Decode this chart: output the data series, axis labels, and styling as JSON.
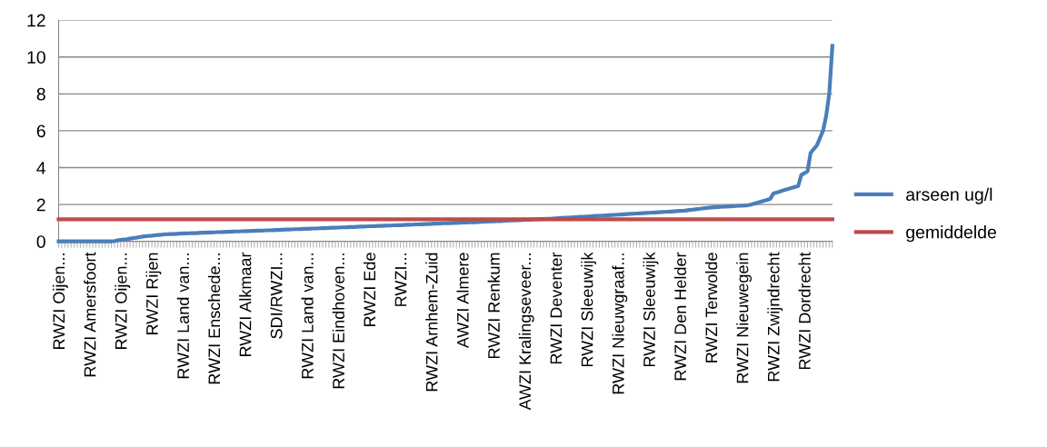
{
  "chart_data": {
    "type": "line",
    "categories": [
      "RWZI Oijen...",
      null,
      null,
      null,
      null,
      null,
      null,
      null,
      null,
      null,
      "RWZI Amersfoort",
      null,
      null,
      null,
      null,
      null,
      null,
      null,
      null,
      null,
      "RWZI Oijen...",
      null,
      null,
      null,
      null,
      null,
      null,
      null,
      null,
      null,
      "RWZI Rijen",
      null,
      null,
      null,
      null,
      null,
      null,
      null,
      null,
      null,
      "RWZI Land van...",
      null,
      null,
      null,
      null,
      null,
      null,
      null,
      null,
      null,
      "RWZI Enschede...",
      null,
      null,
      null,
      null,
      null,
      null,
      null,
      null,
      null,
      "RWZI Alkmaar",
      null,
      null,
      null,
      null,
      null,
      null,
      null,
      null,
      null,
      "SDI/RWZI...",
      null,
      null,
      null,
      null,
      null,
      null,
      null,
      null,
      null,
      "RWZI Land van...",
      null,
      null,
      null,
      null,
      null,
      null,
      null,
      null,
      null,
      "RWZI Eindhoven...",
      null,
      null,
      null,
      null,
      null,
      null,
      null,
      null,
      null,
      "RWZI Ede",
      null,
      null,
      null,
      null,
      null,
      null,
      null,
      null,
      null,
      "RWZI...",
      null,
      null,
      null,
      null,
      null,
      null,
      null,
      null,
      null,
      "RWZI Arnhem-Zuid",
      null,
      null,
      null,
      null,
      null,
      null,
      null,
      null,
      null,
      "AWZI Almere",
      null,
      null,
      null,
      null,
      null,
      null,
      null,
      null,
      null,
      "RWZI Renkum",
      null,
      null,
      null,
      null,
      null,
      null,
      null,
      null,
      null,
      "AWZI Kralingseveer...",
      null,
      null,
      null,
      null,
      null,
      null,
      null,
      null,
      null,
      "RWZI Deventer",
      null,
      null,
      null,
      null,
      null,
      null,
      null,
      null,
      null,
      "RWZI Sleeuwijk",
      null,
      null,
      null,
      null,
      null,
      null,
      null,
      null,
      null,
      "RWZI Nieuwgraaf...",
      null,
      null,
      null,
      null,
      null,
      null,
      null,
      null,
      null,
      "RWZI Sleeuwijk",
      null,
      null,
      null,
      null,
      null,
      null,
      null,
      null,
      null,
      "RWZI Den Helder",
      null,
      null,
      null,
      null,
      null,
      null,
      null,
      null,
      null,
      "RWZI Terwolde",
      null,
      null,
      null,
      null,
      null,
      null,
      null,
      null,
      null,
      "RWZI Nieuwegein",
      null,
      null,
      null,
      null,
      null,
      null,
      null,
      null,
      null,
      "RWZI Zwijndrecht",
      null,
      null,
      null,
      null,
      null,
      null,
      null,
      null,
      null,
      "RWZI Dordrecht",
      null,
      null,
      null,
      null,
      null,
      null,
      null,
      null,
      null
    ],
    "series": [
      {
        "name": "arseen ug/l",
        "color": "#4a7ebb",
        "values": [
          0,
          0,
          0,
          0,
          0,
          0,
          0,
          0,
          0,
          0,
          0,
          0,
          0,
          0,
          0,
          0,
          0,
          0,
          0.02,
          0.05,
          0.08,
          0.1,
          0.12,
          0.15,
          0.18,
          0.2,
          0.23,
          0.26,
          0.28,
          0.3,
          0.31,
          0.33,
          0.35,
          0.36,
          0.38,
          0.39,
          0.4,
          0.4,
          0.41,
          0.42,
          0.43,
          0.43,
          0.44,
          0.45,
          0.45,
          0.46,
          0.47,
          0.47,
          0.48,
          0.48,
          0.49,
          0.5,
          0.5,
          0.51,
          0.52,
          0.52,
          0.53,
          0.54,
          0.54,
          0.55,
          0.56,
          0.56,
          0.57,
          0.57,
          0.58,
          0.58,
          0.59,
          0.6,
          0.6,
          0.61,
          0.62,
          0.62,
          0.63,
          0.64,
          0.64,
          0.65,
          0.66,
          0.66,
          0.67,
          0.68,
          0.68,
          0.69,
          0.7,
          0.7,
          0.71,
          0.72,
          0.72,
          0.73,
          0.74,
          0.74,
          0.75,
          0.76,
          0.76,
          0.77,
          0.78,
          0.78,
          0.79,
          0.8,
          0.8,
          0.81,
          0.82,
          0.82,
          0.83,
          0.84,
          0.84,
          0.85,
          0.86,
          0.86,
          0.87,
          0.88,
          0.88,
          0.89,
          0.9,
          0.9,
          0.91,
          0.92,
          0.92,
          0.93,
          0.94,
          0.94,
          0.95,
          0.96,
          0.96,
          0.97,
          0.98,
          0.98,
          0.99,
          1.0,
          1.0,
          1.01,
          1.02,
          1.02,
          1.03,
          1.04,
          1.04,
          1.05,
          1.06,
          1.07,
          1.07,
          1.08,
          1.09,
          1.1,
          1.1,
          1.11,
          1.12,
          1.13,
          1.13,
          1.14,
          1.15,
          1.16,
          1.17,
          1.17,
          1.18,
          1.19,
          1.2,
          1.21,
          1.21,
          1.22,
          1.23,
          1.24,
          1.25,
          1.26,
          1.27,
          1.28,
          1.29,
          1.3,
          1.31,
          1.32,
          1.33,
          1.34,
          1.35,
          1.36,
          1.37,
          1.38,
          1.39,
          1.4,
          1.41,
          1.42,
          1.43,
          1.44,
          1.45,
          1.46,
          1.47,
          1.48,
          1.49,
          1.5,
          1.51,
          1.52,
          1.53,
          1.54,
          1.55,
          1.56,
          1.57,
          1.58,
          1.59,
          1.6,
          1.61,
          1.62,
          1.63,
          1.64,
          1.65,
          1.66,
          1.68,
          1.7,
          1.72,
          1.74,
          1.76,
          1.78,
          1.8,
          1.82,
          1.84,
          1.85,
          1.86,
          1.87,
          1.88,
          1.89,
          1.9,
          1.91,
          1.92,
          1.93,
          1.94,
          1.95,
          1.97,
          2.0,
          2.05,
          2.1,
          2.15,
          2.2,
          2.25,
          2.3,
          2.6,
          2.65,
          2.7,
          2.75,
          2.8,
          2.85,
          2.9,
          2.95,
          3.0,
          3.6,
          3.7,
          3.8,
          4.8,
          5.0,
          5.2,
          5.6,
          6.0,
          6.8,
          8.0,
          10.6
        ]
      },
      {
        "name": "gemiddelde",
        "color": "#be4b48",
        "values": [
          1.2,
          1.2,
          1.2,
          1.2,
          1.2,
          1.2,
          1.2,
          1.2,
          1.2,
          1.2,
          1.2,
          1.2,
          1.2,
          1.2,
          1.2,
          1.2,
          1.2,
          1.2,
          1.2,
          1.2,
          1.2,
          1.2,
          1.2,
          1.2,
          1.2,
          1.2,
          1.2,
          1.2,
          1.2,
          1.2,
          1.2,
          1.2,
          1.2,
          1.2,
          1.2,
          1.2,
          1.2,
          1.2,
          1.2,
          1.2,
          1.2,
          1.2,
          1.2,
          1.2,
          1.2,
          1.2,
          1.2,
          1.2,
          1.2,
          1.2,
          1.2,
          1.2,
          1.2,
          1.2,
          1.2,
          1.2,
          1.2,
          1.2,
          1.2,
          1.2,
          1.2,
          1.2,
          1.2,
          1.2,
          1.2,
          1.2,
          1.2,
          1.2,
          1.2,
          1.2,
          1.2,
          1.2,
          1.2,
          1.2,
          1.2,
          1.2,
          1.2,
          1.2,
          1.2,
          1.2,
          1.2,
          1.2,
          1.2,
          1.2,
          1.2,
          1.2,
          1.2,
          1.2,
          1.2,
          1.2,
          1.2,
          1.2,
          1.2,
          1.2,
          1.2,
          1.2,
          1.2,
          1.2,
          1.2,
          1.2,
          1.2,
          1.2,
          1.2,
          1.2,
          1.2,
          1.2,
          1.2,
          1.2,
          1.2,
          1.2,
          1.2,
          1.2,
          1.2,
          1.2,
          1.2,
          1.2,
          1.2,
          1.2,
          1.2,
          1.2,
          1.2,
          1.2,
          1.2,
          1.2,
          1.2,
          1.2,
          1.2,
          1.2,
          1.2,
          1.2,
          1.2,
          1.2,
          1.2,
          1.2,
          1.2,
          1.2,
          1.2,
          1.2,
          1.2,
          1.2,
          1.2,
          1.2,
          1.2,
          1.2,
          1.2,
          1.2,
          1.2,
          1.2,
          1.2,
          1.2,
          1.2,
          1.2,
          1.2,
          1.2,
          1.2,
          1.2,
          1.2,
          1.2,
          1.2,
          1.2,
          1.2,
          1.2,
          1.2,
          1.2,
          1.2,
          1.2,
          1.2,
          1.2,
          1.2,
          1.2,
          1.2,
          1.2,
          1.2,
          1.2,
          1.2,
          1.2,
          1.2,
          1.2,
          1.2,
          1.2,
          1.2,
          1.2,
          1.2,
          1.2,
          1.2,
          1.2,
          1.2,
          1.2,
          1.2,
          1.2,
          1.2,
          1.2,
          1.2,
          1.2,
          1.2,
          1.2,
          1.2,
          1.2,
          1.2,
          1.2,
          1.2,
          1.2,
          1.2,
          1.2,
          1.2,
          1.2,
          1.2,
          1.2,
          1.2,
          1.2,
          1.2,
          1.2,
          1.2,
          1.2,
          1.2,
          1.2,
          1.2,
          1.2,
          1.2,
          1.2,
          1.2,
          1.2,
          1.2,
          1.2,
          1.2,
          1.2,
          1.2,
          1.2,
          1.2,
          1.2,
          1.2,
          1.2,
          1.2,
          1.2,
          1.2,
          1.2,
          1.2,
          1.2,
          1.2,
          1.2,
          1.2,
          1.2,
          1.2,
          1.2,
          1.2,
          1.2,
          1.2,
          1.2,
          1.2,
          1.2
        ]
      }
    ],
    "ylim": [
      0,
      12
    ],
    "yticks": [
      0,
      2,
      4,
      6,
      8,
      10,
      12
    ],
    "grid": "y",
    "legend": "right",
    "marker": "none",
    "line_style": "solid"
  }
}
